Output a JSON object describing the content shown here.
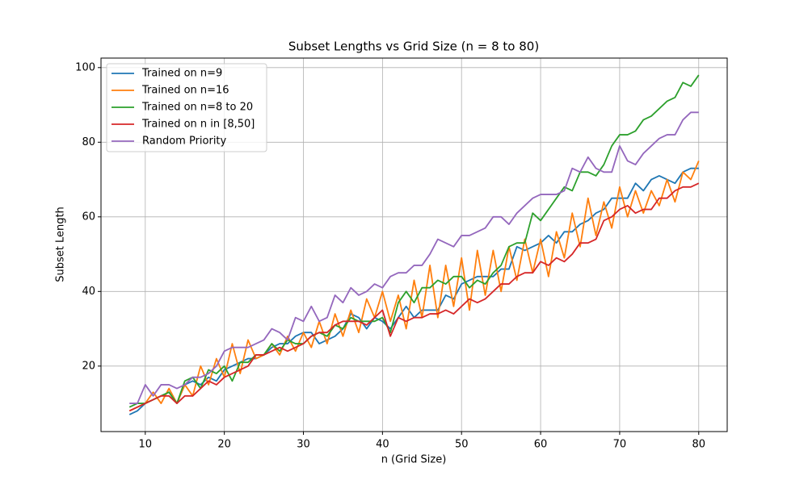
{
  "chart_data": {
    "type": "line",
    "title": "Subset Lengths vs Grid Size (n = 8 to 80)",
    "x_label": "n (Grid Size)",
    "y_label": "Subset Length",
    "x": [
      8,
      9,
      10,
      11,
      12,
      13,
      14,
      15,
      16,
      17,
      18,
      19,
      20,
      21,
      22,
      23,
      24,
      25,
      26,
      27,
      28,
      29,
      30,
      31,
      32,
      33,
      34,
      35,
      36,
      37,
      38,
      39,
      40,
      41,
      42,
      43,
      44,
      45,
      46,
      47,
      48,
      49,
      50,
      51,
      52,
      53,
      54,
      55,
      56,
      57,
      58,
      59,
      60,
      61,
      62,
      63,
      64,
      65,
      66,
      67,
      68,
      69,
      70,
      71,
      72,
      73,
      74,
      75,
      76,
      77,
      78,
      79,
      80
    ],
    "series": [
      {
        "name": "Trained on n=9",
        "color": "#1f77b4",
        "values": [
          7,
          8,
          10,
          11,
          12,
          13,
          10,
          15,
          16,
          15,
          17,
          16,
          19,
          20,
          21,
          22,
          22,
          23,
          25,
          26,
          26,
          28,
          29,
          29,
          26,
          27,
          28,
          30,
          34,
          33,
          30,
          33,
          32,
          30,
          33,
          36,
          33,
          35,
          35,
          35,
          39,
          38,
          42,
          43,
          44,
          44,
          44,
          46,
          46,
          52,
          51,
          52,
          53,
          55,
          53,
          56,
          56,
          58,
          59,
          61,
          62,
          65,
          65,
          65,
          69,
          67,
          70,
          71,
          70,
          69,
          72,
          73,
          73
        ]
      },
      {
        "name": "Trained on n=16",
        "color": "#ff7f0e",
        "values": [
          8,
          9,
          10,
          13,
          10,
          14,
          10,
          15,
          12,
          20,
          15,
          22,
          17,
          26,
          18,
          27,
          22,
          23,
          26,
          23,
          28,
          24,
          29,
          25,
          32,
          26,
          34,
          28,
          35,
          29,
          38,
          33,
          40,
          32,
          39,
          30,
          43,
          33,
          47,
          33,
          47,
          36,
          49,
          35,
          51,
          39,
          51,
          40,
          52,
          43,
          54,
          45,
          54,
          44,
          56,
          49,
          61,
          52,
          65,
          55,
          64,
          57,
          68,
          60,
          67,
          61,
          67,
          63,
          70,
          64,
          72,
          70,
          75
        ]
      },
      {
        "name": "Trained on n=8 to 20",
        "color": "#2ca02c",
        "values": [
          9,
          10,
          10,
          11,
          12,
          13,
          10,
          16,
          17,
          14,
          19,
          18,
          20,
          16,
          21,
          21,
          23,
          23,
          26,
          24,
          27,
          26,
          26,
          28,
          29,
          28,
          31,
          30,
          33,
          32,
          32,
          32,
          33,
          29,
          37,
          40,
          37,
          41,
          41,
          43,
          42,
          44,
          44,
          41,
          43,
          42,
          45,
          47,
          52,
          53,
          53,
          61,
          59,
          62,
          65,
          68,
          67,
          72,
          72,
          71,
          74,
          79,
          82,
          82,
          83,
          86,
          87,
          89,
          91,
          92,
          96,
          95,
          98
        ]
      },
      {
        "name": "Trained on n in [8,50]",
        "color": "#d62728",
        "values": [
          8,
          9,
          10,
          11,
          12,
          12,
          10,
          12,
          12,
          14,
          16,
          15,
          17,
          18,
          19,
          20,
          23,
          23,
          24,
          25,
          24,
          25,
          26,
          28,
          29,
          29,
          31,
          32,
          32,
          32,
          31,
          33,
          35,
          28,
          33,
          32,
          33,
          33,
          34,
          34,
          35,
          34,
          36,
          38,
          37,
          38,
          40,
          42,
          42,
          44,
          45,
          45,
          48,
          47,
          49,
          48,
          50,
          53,
          53,
          54,
          59,
          60,
          62,
          63,
          61,
          62,
          62,
          65,
          65,
          67,
          68,
          68,
          69
        ]
      },
      {
        "name": "Random Priority",
        "color": "#9467bd",
        "values": [
          10,
          10,
          15,
          12,
          15,
          15,
          14,
          15,
          17,
          17,
          18,
          20,
          24,
          25,
          25,
          25,
          26,
          27,
          30,
          29,
          27,
          33,
          32,
          36,
          32,
          33,
          39,
          37,
          41,
          39,
          40,
          42,
          41,
          44,
          45,
          45,
          47,
          47,
          50,
          54,
          53,
          52,
          55,
          55,
          56,
          57,
          60,
          60,
          58,
          61,
          63,
          65,
          66,
          66,
          66,
          67,
          73,
          72,
          76,
          73,
          72,
          72,
          79,
          75,
          74,
          77,
          79,
          81,
          82,
          82,
          86,
          88,
          88
        ]
      }
    ],
    "xlim": [
      4.4,
      83.6
    ],
    "ylim": [
      2.45,
      102.55
    ],
    "xticks": [
      10,
      20,
      30,
      40,
      50,
      60,
      70,
      80
    ],
    "yticks": [
      20,
      40,
      60,
      80,
      100
    ],
    "grid": true,
    "legend": "upper left"
  }
}
